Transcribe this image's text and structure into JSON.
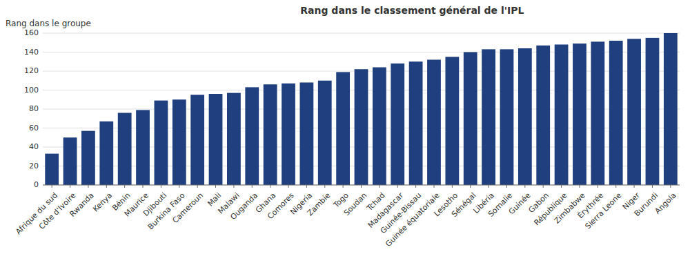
{
  "chart_data": {
    "type": "bar",
    "title": "Rang dans le classement général de l'IPL",
    "ylabel": "Rang dans le groupe",
    "categories": [
      "Afrique du sud",
      "Côte d'Ivoire",
      "Rwanda",
      "Kenya",
      "Bénin",
      "Maurice",
      "Djibouti",
      "Burkina Faso",
      "Cameroun",
      "Mali",
      "Malawi",
      "Ouganda",
      "Ghana",
      "Comores",
      "Nigeria",
      "Zambie",
      "Togo",
      "Soudan",
      "Tchad",
      "Madagascar",
      "Guinée-Bissau",
      "Guinée équatoriale",
      "Lesotho",
      "Sénégal",
      "Libéria",
      "Somalie",
      "Guinée",
      "Gabon",
      "République",
      "Zimbabwe",
      "Érythrée",
      "Sierra Leone",
      "Niger",
      "Burundi",
      "Angola"
    ],
    "values": [
      33,
      50,
      57,
      67,
      76,
      79,
      89,
      90,
      95,
      96,
      97,
      103,
      106,
      107,
      108,
      110,
      119,
      122,
      124,
      128,
      130,
      132,
      135,
      140,
      143,
      143,
      144,
      147,
      148,
      149,
      151,
      152,
      154,
      155,
      160
    ],
    "color": "#1F3F7F",
    "ylim": [
      0,
      160
    ],
    "yticks": [
      0,
      20,
      40,
      60,
      80,
      100,
      120,
      140,
      160
    ],
    "grid": true
  }
}
